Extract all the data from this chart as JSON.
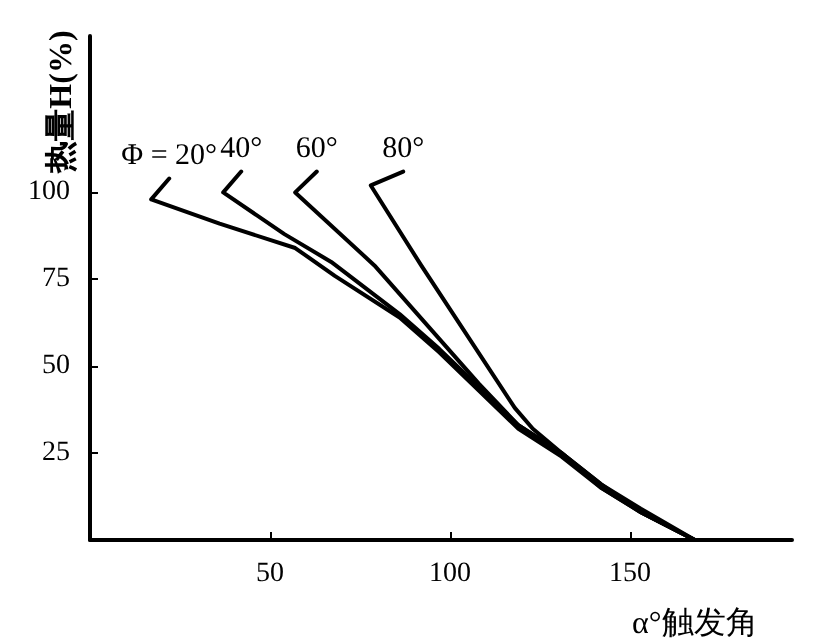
{
  "chart_data": {
    "type": "line",
    "xlabel": "α°触发角",
    "ylabel": "热量H(%)",
    "xlim": [
      0,
      195
    ],
    "ylim": [
      0,
      145
    ],
    "xticks": [
      50,
      100,
      150
    ],
    "yticks": [
      25,
      50,
      75,
      100
    ],
    "grid": false,
    "legend": false,
    "marker": "none",
    "line_style": "solid",
    "series": [
      {
        "name": "Φ = 20°",
        "color": "#000000",
        "x": [
          22,
          17,
          36,
          57,
          68,
          86,
          97,
          108,
          119,
          131,
          142,
          153,
          168
        ],
        "values": [
          104,
          98,
          91,
          84,
          76,
          64,
          54,
          43,
          32,
          24,
          15,
          8,
          0
        ]
      },
      {
        "name": "40°",
        "color": "#000000",
        "x": [
          42,
          37,
          54,
          67,
          86,
          97,
          108,
          119,
          131,
          142,
          153,
          168
        ],
        "values": [
          106,
          100,
          88,
          80,
          65,
          55,
          44,
          33,
          25,
          16,
          9,
          0
        ]
      },
      {
        "name": "60°",
        "color": "#000000",
        "x": [
          63,
          57,
          79,
          108,
          119,
          131,
          142,
          153,
          168
        ],
        "values": [
          106,
          100,
          79,
          45,
          33,
          25,
          16,
          8,
          0
        ]
      },
      {
        "name": "80°",
        "color": "#000000",
        "x": [
          87,
          78,
          92,
          118,
          123,
          131,
          142,
          153,
          168
        ],
        "values": [
          106,
          102,
          79,
          38,
          32,
          25,
          15,
          8,
          0
        ]
      }
    ]
  }
}
